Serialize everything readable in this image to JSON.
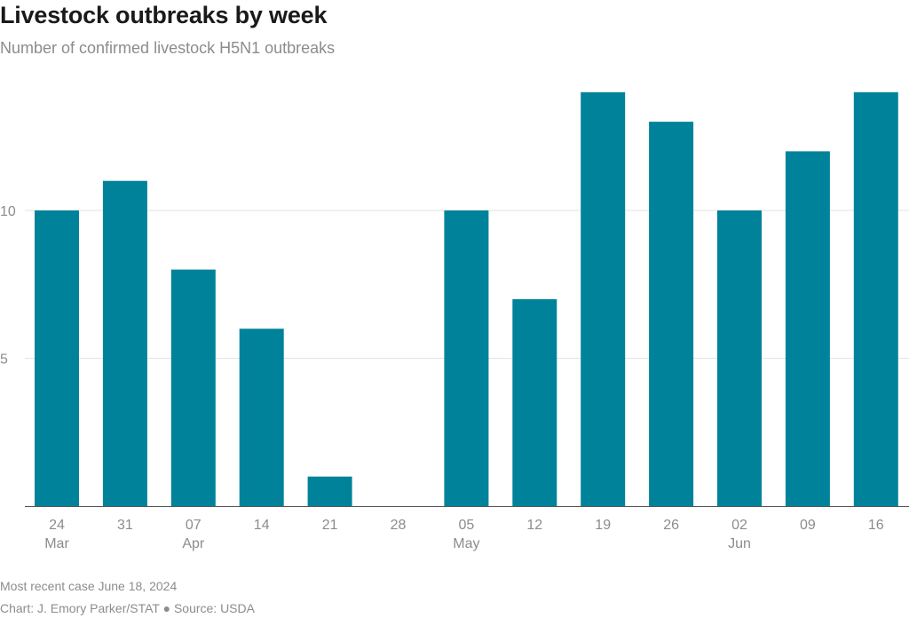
{
  "header": {
    "title": "Livestock outbreaks by week",
    "subtitle": "Number of confirmed livestock H5N1 outbreaks"
  },
  "footer": {
    "note": "Most recent case June 18, 2024",
    "credit": "Chart: J. Emory Parker/STAT ● Source: USDA"
  },
  "colors": {
    "bar": "#00839a",
    "grid": "#e3e3e3",
    "axis": "#555555",
    "tick_text": "#8c8c8c"
  },
  "chart_data": {
    "type": "bar",
    "title": "Livestock outbreaks by week",
    "subtitle": "Number of confirmed livestock H5N1 outbreaks",
    "categories": [
      "24",
      "31",
      "07",
      "14",
      "21",
      "28",
      "05",
      "12",
      "19",
      "26",
      "02",
      "09",
      "16"
    ],
    "month_labels": [
      "Mar",
      "",
      "Apr",
      "",
      "",
      "",
      "May",
      "",
      "",
      "",
      "Jun",
      "",
      ""
    ],
    "values": [
      10,
      11,
      8,
      6,
      1,
      0,
      10,
      7,
      14,
      13,
      10,
      12,
      14
    ],
    "yticks": [
      5,
      10
    ],
    "ylim": [
      0,
      14
    ],
    "grid": true,
    "legend": "none"
  }
}
